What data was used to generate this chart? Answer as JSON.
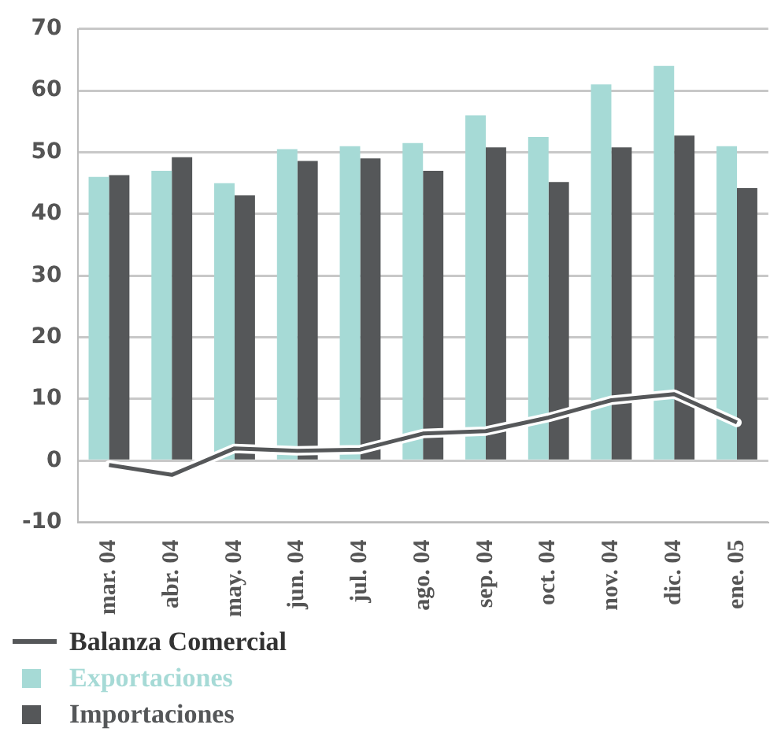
{
  "chart_data": {
    "type": "bar",
    "categories": [
      "mar. 04",
      "abr. 04",
      "may. 04",
      "jun. 04",
      "jul. 04",
      "ago. 04",
      "sep. 04",
      "oct. 04",
      "nov. 04",
      "dic. 04",
      "ene. 05"
    ],
    "series": [
      {
        "name": "Balanza Comercial",
        "type": "line",
        "color": "#555759",
        "values": [
          -0.7,
          -2.3,
          2,
          1.6,
          1.8,
          4.4,
          4.8,
          7,
          9.8,
          10.8,
          6.2
        ]
      },
      {
        "name": "Exportaciones",
        "color": "#a6dad6",
        "values": [
          46,
          47,
          45,
          50.5,
          51,
          51.5,
          56,
          52.5,
          61,
          64,
          51
        ]
      },
      {
        "name": "Importaciones",
        "color": "#555759",
        "values": [
          46.3,
          49.2,
          43,
          48.6,
          49,
          47,
          50.8,
          45.2,
          50.8,
          52.7,
          44.2
        ]
      }
    ],
    "ylim": [
      -10,
      70
    ],
    "yticks": [
      -10,
      0,
      10,
      20,
      30,
      40,
      50,
      60,
      70
    ],
    "grid": "y",
    "legend": "bottom left",
    "marker": "none",
    "line_style": "solid"
  }
}
